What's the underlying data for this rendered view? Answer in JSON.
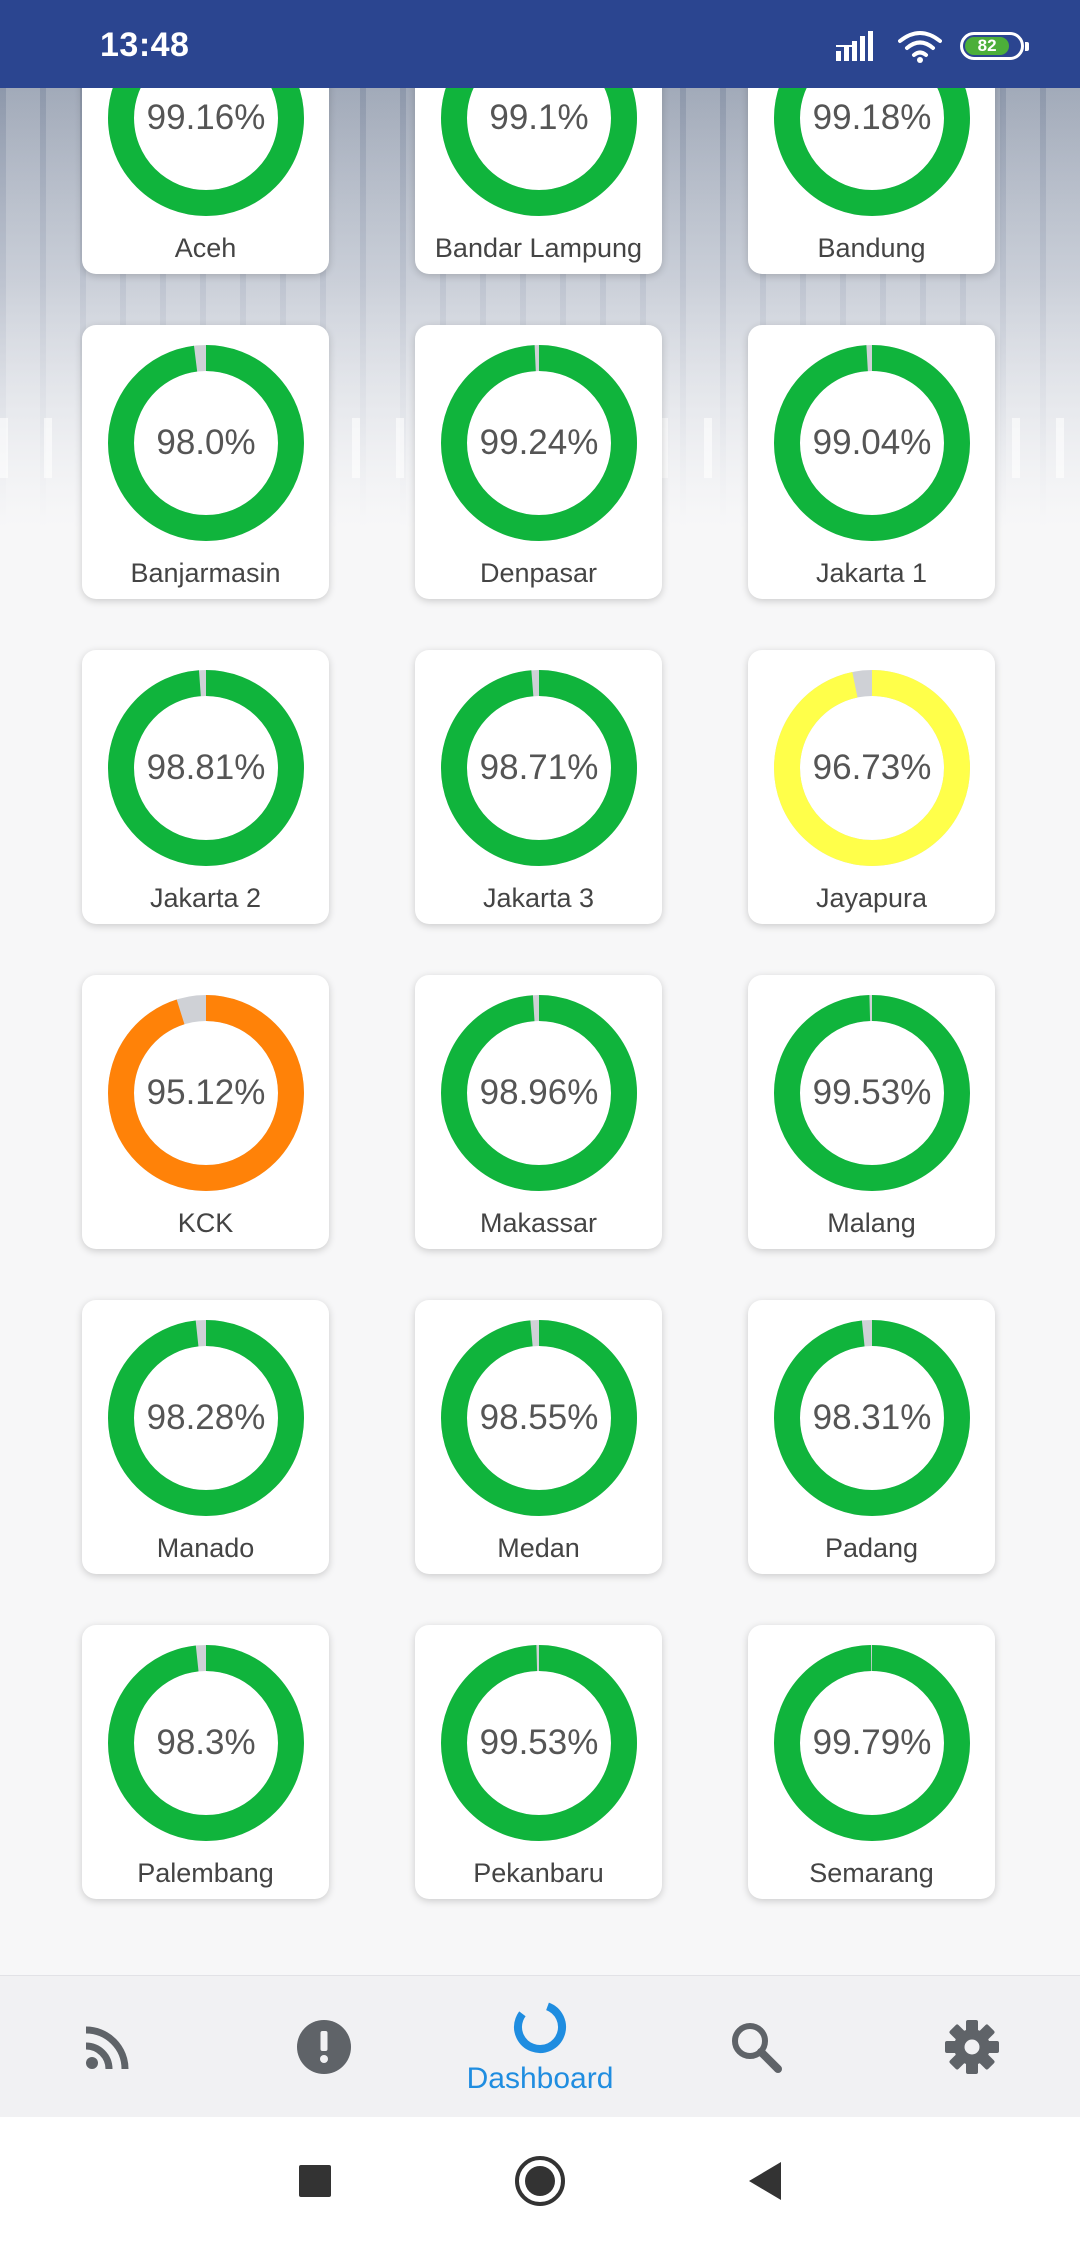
{
  "status_bar": {
    "time": "13:48",
    "battery": "82"
  },
  "colors": {
    "ok": "#10b43c",
    "warn": "#ffff4a",
    "bad": "#ff8208",
    "remainder": "#cfd1d6",
    "accent": "#1f8de0"
  },
  "cards": [
    {
      "name": "Aceh",
      "value": "99.16%",
      "pct": 99.16,
      "status": "ok"
    },
    {
      "name": "Bandar Lampung",
      "value": "99.1%",
      "pct": 99.1,
      "status": "ok"
    },
    {
      "name": "Bandung",
      "value": "99.18%",
      "pct": 99.18,
      "status": "ok"
    },
    {
      "name": "Banjarmasin",
      "value": "98.0%",
      "pct": 98.0,
      "status": "ok"
    },
    {
      "name": "Denpasar",
      "value": "99.24%",
      "pct": 99.24,
      "status": "ok"
    },
    {
      "name": "Jakarta 1",
      "value": "99.04%",
      "pct": 99.04,
      "status": "ok"
    },
    {
      "name": "Jakarta 2",
      "value": "98.81%",
      "pct": 98.81,
      "status": "ok"
    },
    {
      "name": "Jakarta 3",
      "value": "98.71%",
      "pct": 98.71,
      "status": "ok"
    },
    {
      "name": "Jayapura",
      "value": "96.73%",
      "pct": 96.73,
      "status": "warn"
    },
    {
      "name": "KCK",
      "value": "95.12%",
      "pct": 95.12,
      "status": "bad"
    },
    {
      "name": "Makassar",
      "value": "98.96%",
      "pct": 98.96,
      "status": "ok"
    },
    {
      "name": "Malang",
      "value": "99.53%",
      "pct": 99.53,
      "status": "ok"
    },
    {
      "name": "Manado",
      "value": "98.28%",
      "pct": 98.28,
      "status": "ok"
    },
    {
      "name": "Medan",
      "value": "98.55%",
      "pct": 98.55,
      "status": "ok"
    },
    {
      "name": "Padang",
      "value": "98.31%",
      "pct": 98.31,
      "status": "ok"
    },
    {
      "name": "Palembang",
      "value": "98.3%",
      "pct": 98.3,
      "status": "ok"
    },
    {
      "name": "Pekanbaru",
      "value": "99.53%",
      "pct": 99.53,
      "status": "ok"
    },
    {
      "name": "Semarang",
      "value": "99.79%",
      "pct": 99.79,
      "status": "ok"
    }
  ],
  "bottom_nav": {
    "items": [
      {
        "icon": "rss-feed-icon",
        "label": ""
      },
      {
        "icon": "alert-icon",
        "label": ""
      },
      {
        "icon": "dashboard-icon",
        "label": "Dashboard",
        "active": true
      },
      {
        "icon": "search-icon",
        "label": ""
      },
      {
        "icon": "gear-icon",
        "label": ""
      }
    ]
  },
  "system_nav": {
    "icons": [
      "recents-square-icon",
      "home-circle-icon",
      "back-triangle-icon"
    ]
  }
}
